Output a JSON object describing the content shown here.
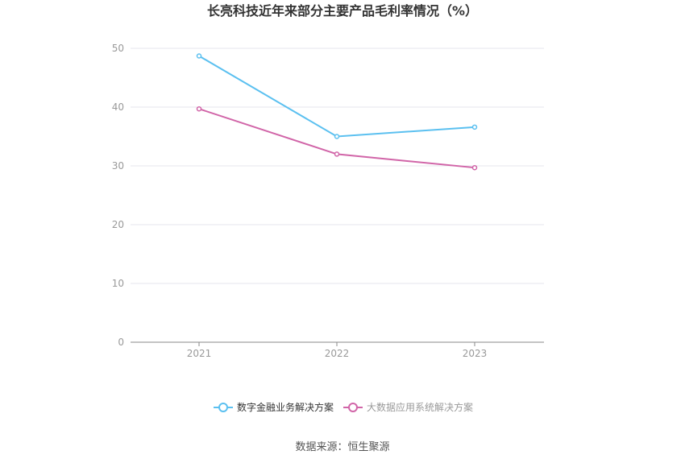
{
  "chart_data": {
    "type": "line",
    "title": "长亮科技近年来部分主要产品毛利率情况（%）",
    "categories": [
      "2021",
      "2022",
      "2023"
    ],
    "ylim": [
      0,
      50
    ],
    "yticks": [
      0,
      10,
      20,
      30,
      40,
      50
    ],
    "grid": true,
    "legend_position": "bottom",
    "series": [
      {
        "name": "数字金融业务解决方案",
        "values": [
          48.7,
          35.0,
          36.6
        ],
        "color": "#5bc0f0"
      },
      {
        "name": "大数据应用系统解决方案",
        "values": [
          39.7,
          32.0,
          29.7
        ],
        "color": "#d165a8"
      }
    ],
    "source": "数据来源：恒生聚源"
  }
}
